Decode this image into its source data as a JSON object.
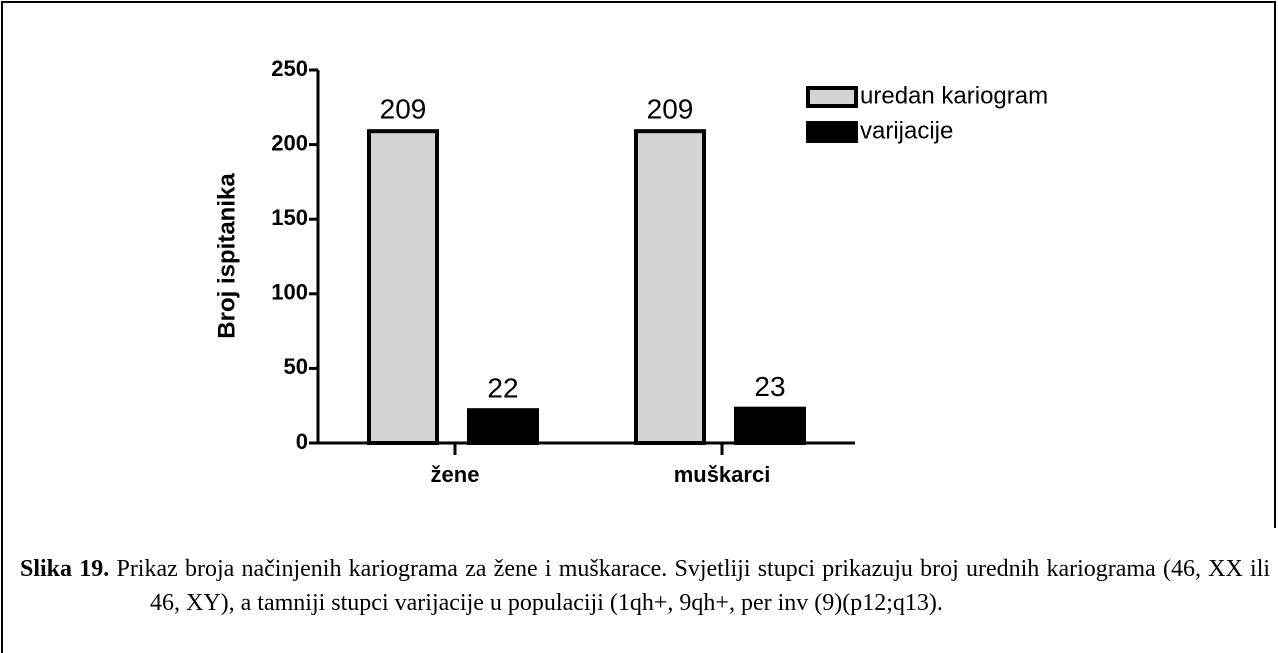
{
  "chart_data": {
    "type": "bar",
    "ylabel": "Broj ispitanika",
    "categories": [
      "žene",
      "muškarci"
    ],
    "series": [
      {
        "name": "uredan kariogram",
        "color": "#d3d3d3",
        "values": [
          209,
          209
        ]
      },
      {
        "name": "varijacije",
        "color": "#000000",
        "values": [
          22,
          23
        ]
      }
    ],
    "ylim": [
      0,
      250
    ],
    "yticks": [
      0,
      50,
      100,
      150,
      200,
      250
    ],
    "legend": "upper right"
  },
  "caption": {
    "label": "Slika 19.",
    "text": "Prikaz broja načinjenih kariograma za žene i muškarace. Svjetliji stupci prikazuju broj urednih kariograma (46, XX ili 46, XY), a tamniji stupci varijacije u populaciji (1qh+, 9qh+, per inv (9)(p12;q13)."
  }
}
